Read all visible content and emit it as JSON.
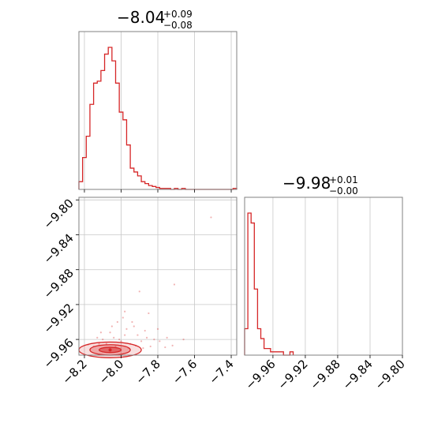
{
  "chart_data": {
    "type": "corner",
    "color": "#d62728",
    "params": [
      {
        "title_value": "−8.04",
        "title_plus": "+0.09",
        "title_minus": "−0.08",
        "range": [
          -8.23,
          -7.37
        ],
        "ticks": [
          -8.2,
          -8.0,
          -7.8,
          -7.6,
          -7.4
        ],
        "tick_labels": [
          "−8.2",
          "−8.0",
          "−7.8",
          "−7.6",
          "−7.4"
        ],
        "hist_bin_width": 0.02,
        "hist_counts": [
          8,
          33,
          55,
          88,
          110,
          112,
          123,
          140,
          147,
          133,
          110,
          80,
          72,
          46,
          22,
          18,
          14,
          8,
          6,
          4,
          3,
          2,
          1,
          1,
          1,
          0,
          1,
          0,
          1,
          0,
          0,
          0,
          0,
          0,
          0,
          0,
          0,
          0,
          0,
          0,
          0,
          0,
          1
        ]
      },
      {
        "title_value": "−9.98",
        "title_plus": "+0.01",
        "title_minus": "−0.00",
        "range": [
          -9.995,
          -9.8
        ],
        "ticks": [
          -9.96,
          -9.92,
          -9.88,
          -9.84,
          -9.8
        ],
        "tick_labels": [
          "−9.96",
          "−9.92",
          "−9.88",
          "−9.84",
          "−9.80"
        ],
        "hist_bin_width": 0.004,
        "hist_counts": [
          8,
          43,
          40,
          20,
          8,
          5,
          2,
          2,
          1,
          1,
          1,
          1,
          0,
          0,
          1
        ]
      }
    ],
    "scatter_2d": {
      "x_range": [
        -8.23,
        -7.37
      ],
      "y_range": [
        -9.978,
        -9.797
      ],
      "y_ticks": [
        -9.8,
        -9.84,
        -9.88,
        -9.92,
        -9.96
      ],
      "y_tick_labels": [
        "−9.80",
        "−9.84",
        "−9.88",
        "−9.92",
        "−9.96"
      ],
      "contour_center": [
        -8.06,
        -9.972
      ],
      "contour_levels": [
        {
          "rx": 0.06,
          "ry": 0.003,
          "alpha": 0.5
        },
        {
          "rx": 0.11,
          "ry": 0.006,
          "alpha": 0.3
        },
        {
          "rx": 0.17,
          "ry": 0.009,
          "alpha": 0.15
        }
      ],
      "points": [
        [
          -7.51,
          -9.82
        ],
        [
          -7.71,
          -9.897
        ],
        [
          -7.85,
          -9.93
        ],
        [
          -7.98,
          -9.955
        ],
        [
          -8.02,
          -9.94
        ],
        [
          -7.93,
          -9.945
        ],
        [
          -8.06,
          -9.952
        ],
        [
          -8.1,
          -9.96
        ],
        [
          -7.89,
          -9.962
        ],
        [
          -7.82,
          -9.96
        ],
        [
          -7.95,
          -9.965
        ],
        [
          -8.0,
          -9.962
        ],
        [
          -8.12,
          -9.965
        ],
        [
          -8.15,
          -9.968
        ],
        [
          -7.75,
          -9.958
        ],
        [
          -7.87,
          -9.95
        ],
        [
          -7.99,
          -9.935
        ],
        [
          -7.91,
          -9.955
        ],
        [
          -8.04,
          -9.958
        ],
        [
          -7.97,
          -9.948
        ],
        [
          -8.08,
          -9.965
        ],
        [
          -7.84,
          -9.968
        ],
        [
          -7.79,
          -9.962
        ],
        [
          -7.72,
          -9.967
        ],
        [
          -7.94,
          -9.94
        ],
        [
          -8.01,
          -9.96
        ],
        [
          -8.05,
          -9.945
        ],
        [
          -8.13,
          -9.958
        ],
        [
          -7.9,
          -9.905
        ],
        [
          -7.98,
          -9.928
        ],
        [
          -7.8,
          -9.948
        ],
        [
          -7.86,
          -9.958
        ],
        [
          -8.18,
          -9.966
        ],
        [
          -7.92,
          -9.967
        ],
        [
          -7.96,
          -9.97
        ],
        [
          -7.88,
          -9.97
        ],
        [
          -7.76,
          -9.969
        ],
        [
          -7.66,
          -9.96
        ],
        [
          -8.03,
          -9.968
        ],
        [
          -8.11,
          -9.952
        ]
      ]
    }
  }
}
